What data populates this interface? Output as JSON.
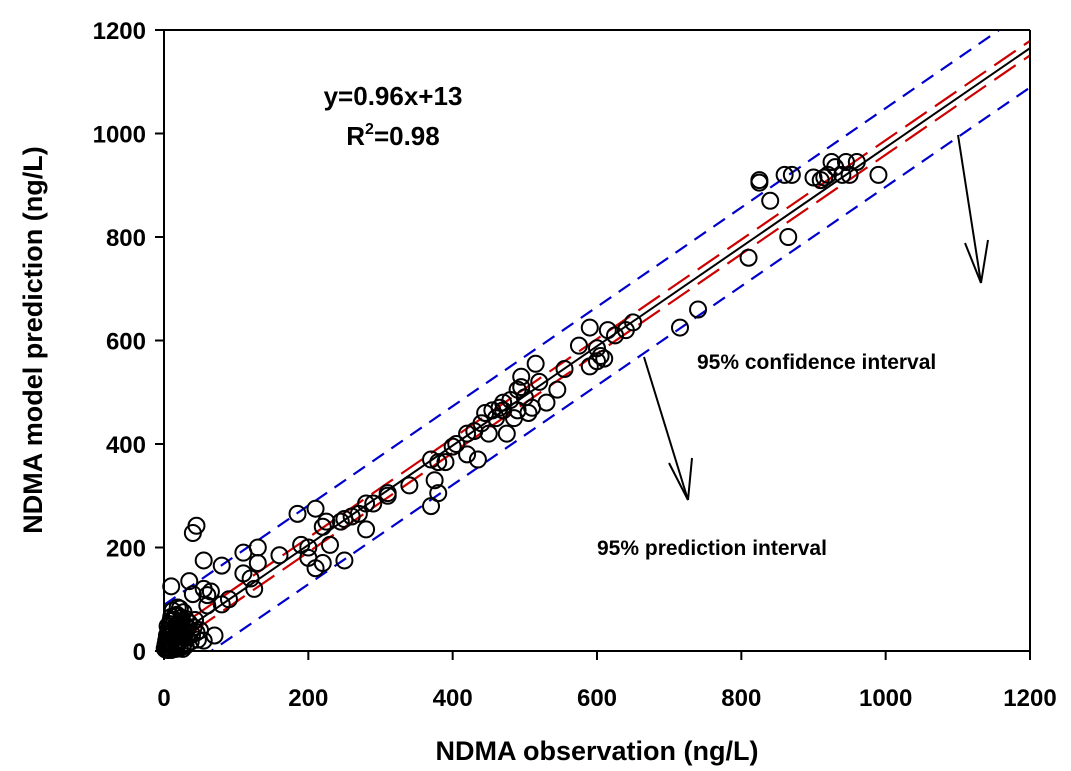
{
  "chart_data": {
    "type": "scatter",
    "xlabel": "NDMA observation (ng/L)",
    "ylabel": "NDMA model prediction (ng/L)",
    "xlim": [
      0,
      1200
    ],
    "ylim": [
      0,
      1200
    ],
    "xticks": [
      "0",
      "200",
      "400",
      "600",
      "800",
      "1000",
      "1200"
    ],
    "yticks": [
      "0",
      "200",
      "400",
      "600",
      "800",
      "1000",
      "1200"
    ],
    "grid": false,
    "regression": {
      "slope": 0.96,
      "intercept": 13
    },
    "equation_text": "y=0.96x+13",
    "r2_prefix": "R",
    "r2_sup": "2",
    "r2_suffix": "=0.98",
    "confidence_label": "95% confidence interval",
    "prediction_label": "95% prediction interval",
    "colors": {
      "fit": "#000000",
      "confidence": "#cc0000",
      "prediction": "#0000cc",
      "marker": "#000000"
    },
    "points": [
      [
        2,
        3
      ],
      [
        3,
        8
      ],
      [
        4,
        14
      ],
      [
        5,
        2
      ],
      [
        6,
        20
      ],
      [
        7,
        12
      ],
      [
        8,
        28
      ],
      [
        9,
        5
      ],
      [
        10,
        34
      ],
      [
        11,
        18
      ],
      [
        12,
        42
      ],
      [
        13,
        9
      ],
      [
        14,
        60
      ],
      [
        15,
        25
      ],
      [
        16,
        48
      ],
      [
        17,
        4
      ],
      [
        18,
        70
      ],
      [
        19,
        36
      ],
      [
        20,
        15
      ],
      [
        21,
        55
      ],
      [
        22,
        82
      ],
      [
        23,
        22
      ],
      [
        24,
        64
      ],
      [
        25,
        40
      ],
      [
        26,
        10
      ],
      [
        27,
        75
      ],
      [
        28,
        30
      ],
      [
        29,
        50
      ],
      [
        30,
        62
      ],
      [
        6,
        40
      ],
      [
        8,
        52
      ],
      [
        10,
        66
      ],
      [
        12,
        78
      ],
      [
        5,
        48
      ],
      [
        7,
        30
      ],
      [
        9,
        58
      ],
      [
        11,
        24
      ],
      [
        13,
        36
      ],
      [
        15,
        68
      ],
      [
        17,
        44
      ],
      [
        19,
        84
      ],
      [
        21,
        32
      ],
      [
        23,
        46
      ],
      [
        25,
        58
      ],
      [
        27,
        14
      ],
      [
        29,
        38
      ],
      [
        31,
        26
      ],
      [
        33,
        44
      ],
      [
        35,
        54
      ],
      [
        37,
        18
      ],
      [
        39,
        32
      ],
      [
        41,
        46
      ],
      [
        43,
        60
      ],
      [
        45,
        36
      ],
      [
        47,
        22
      ],
      [
        50,
        40
      ],
      [
        3,
        20
      ],
      [
        4,
        30
      ],
      [
        2,
        12
      ],
      [
        1,
        5
      ],
      [
        6,
        6
      ],
      [
        8,
        16
      ],
      [
        10,
        2
      ],
      [
        14,
        4
      ],
      [
        18,
        8
      ],
      [
        22,
        6
      ],
      [
        26,
        4
      ],
      [
        30,
        10
      ],
      [
        10,
        125
      ],
      [
        35,
        135
      ],
      [
        40,
        228
      ],
      [
        45,
        242
      ],
      [
        40,
        110
      ],
      [
        55,
        120
      ],
      [
        55,
        175
      ],
      [
        60,
        88
      ],
      [
        60,
        108
      ],
      [
        70,
        30
      ],
      [
        65,
        115
      ],
      [
        80,
        90
      ],
      [
        80,
        165
      ],
      [
        90,
        100
      ],
      [
        55,
        20
      ],
      [
        110,
        150
      ],
      [
        110,
        190
      ],
      [
        120,
        140
      ],
      [
        125,
        120
      ],
      [
        130,
        200
      ],
      [
        130,
        170
      ],
      [
        160,
        185
      ],
      [
        185,
        265
      ],
      [
        190,
        205
      ],
      [
        200,
        180
      ],
      [
        200,
        200
      ],
      [
        210,
        160
      ],
      [
        210,
        275
      ],
      [
        220,
        170
      ],
      [
        220,
        240
      ],
      [
        225,
        250
      ],
      [
        230,
        205
      ],
      [
        245,
        250
      ],
      [
        250,
        255
      ],
      [
        250,
        175
      ],
      [
        260,
        260
      ],
      [
        270,
        265
      ],
      [
        280,
        285
      ],
      [
        280,
        235
      ],
      [
        290,
        285
      ],
      [
        310,
        300
      ],
      [
        310,
        305
      ],
      [
        340,
        320
      ],
      [
        370,
        370
      ],
      [
        370,
        280
      ],
      [
        375,
        330
      ],
      [
        380,
        305
      ],
      [
        380,
        365
      ],
      [
        390,
        365
      ],
      [
        400,
        395
      ],
      [
        405,
        400
      ],
      [
        420,
        380
      ],
      [
        420,
        420
      ],
      [
        430,
        425
      ],
      [
        435,
        370
      ],
      [
        440,
        440
      ],
      [
        445,
        460
      ],
      [
        450,
        420
      ],
      [
        455,
        465
      ],
      [
        460,
        450
      ],
      [
        465,
        470
      ],
      [
        470,
        480
      ],
      [
        470,
        465
      ],
      [
        475,
        420
      ],
      [
        480,
        485
      ],
      [
        485,
        450
      ],
      [
        490,
        505
      ],
      [
        490,
        465
      ],
      [
        495,
        530
      ],
      [
        495,
        510
      ],
      [
        500,
        490
      ],
      [
        505,
        460
      ],
      [
        510,
        470
      ],
      [
        515,
        555
      ],
      [
        520,
        520
      ],
      [
        530,
        480
      ],
      [
        545,
        505
      ],
      [
        555,
        545
      ],
      [
        575,
        590
      ],
      [
        590,
        625
      ],
      [
        590,
        550
      ],
      [
        600,
        560
      ],
      [
        600,
        585
      ],
      [
        605,
        570
      ],
      [
        610,
        565
      ],
      [
        615,
        620
      ],
      [
        625,
        610
      ],
      [
        640,
        620
      ],
      [
        650,
        635
      ],
      [
        715,
        625
      ],
      [
        740,
        660
      ],
      [
        810,
        760
      ],
      [
        825,
        910
      ],
      [
        825,
        905
      ],
      [
        840,
        870
      ],
      [
        860,
        920
      ],
      [
        865,
        800
      ],
      [
        870,
        920
      ],
      [
        900,
        915
      ],
      [
        910,
        910
      ],
      [
        915,
        915
      ],
      [
        920,
        920
      ],
      [
        925,
        945
      ],
      [
        930,
        935
      ],
      [
        940,
        920
      ],
      [
        945,
        945
      ],
      [
        950,
        920
      ],
      [
        960,
        945
      ],
      [
        990,
        920
      ]
    ]
  }
}
